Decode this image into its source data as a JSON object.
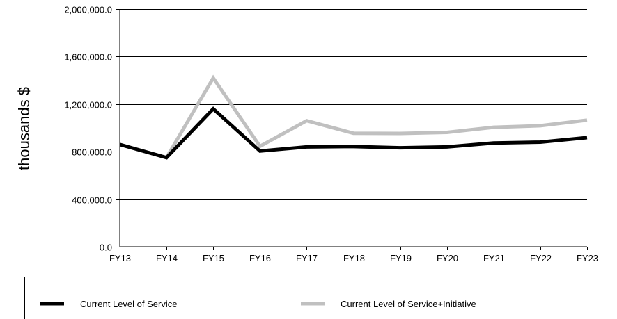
{
  "chart_data": {
    "type": "line",
    "title": "",
    "xlabel": "",
    "ylabel": "thousands $",
    "categories": [
      "FY13",
      "FY14",
      "FY15",
      "FY16",
      "FY17",
      "FY18",
      "FY19",
      "FY20",
      "FY21",
      "FY22",
      "FY23"
    ],
    "ylim": [
      0,
      2000000
    ],
    "yticks": [
      0,
      400000,
      800000,
      1200000,
      1600000,
      2000000
    ],
    "ytick_labels": [
      "0.0",
      "400,000.0",
      "800,000.0",
      "1,200,000.0",
      "1,600,000.0",
      "2,000,000.0"
    ],
    "grid": "horizontal",
    "legend_position": "bottom",
    "series": [
      {
        "name": "Current Level of Service",
        "color": "#000000",
        "values": [
          860000,
          750000,
          1160000,
          805000,
          840000,
          843000,
          833000,
          840000,
          873000,
          880000,
          918000
        ]
      },
      {
        "name": "Current Level of Service+Initiative",
        "color": "#c0c0c0",
        "values": [
          860000,
          750000,
          1420000,
          845000,
          1060000,
          955000,
          953000,
          962000,
          1005000,
          1018000,
          1065000
        ]
      }
    ]
  }
}
